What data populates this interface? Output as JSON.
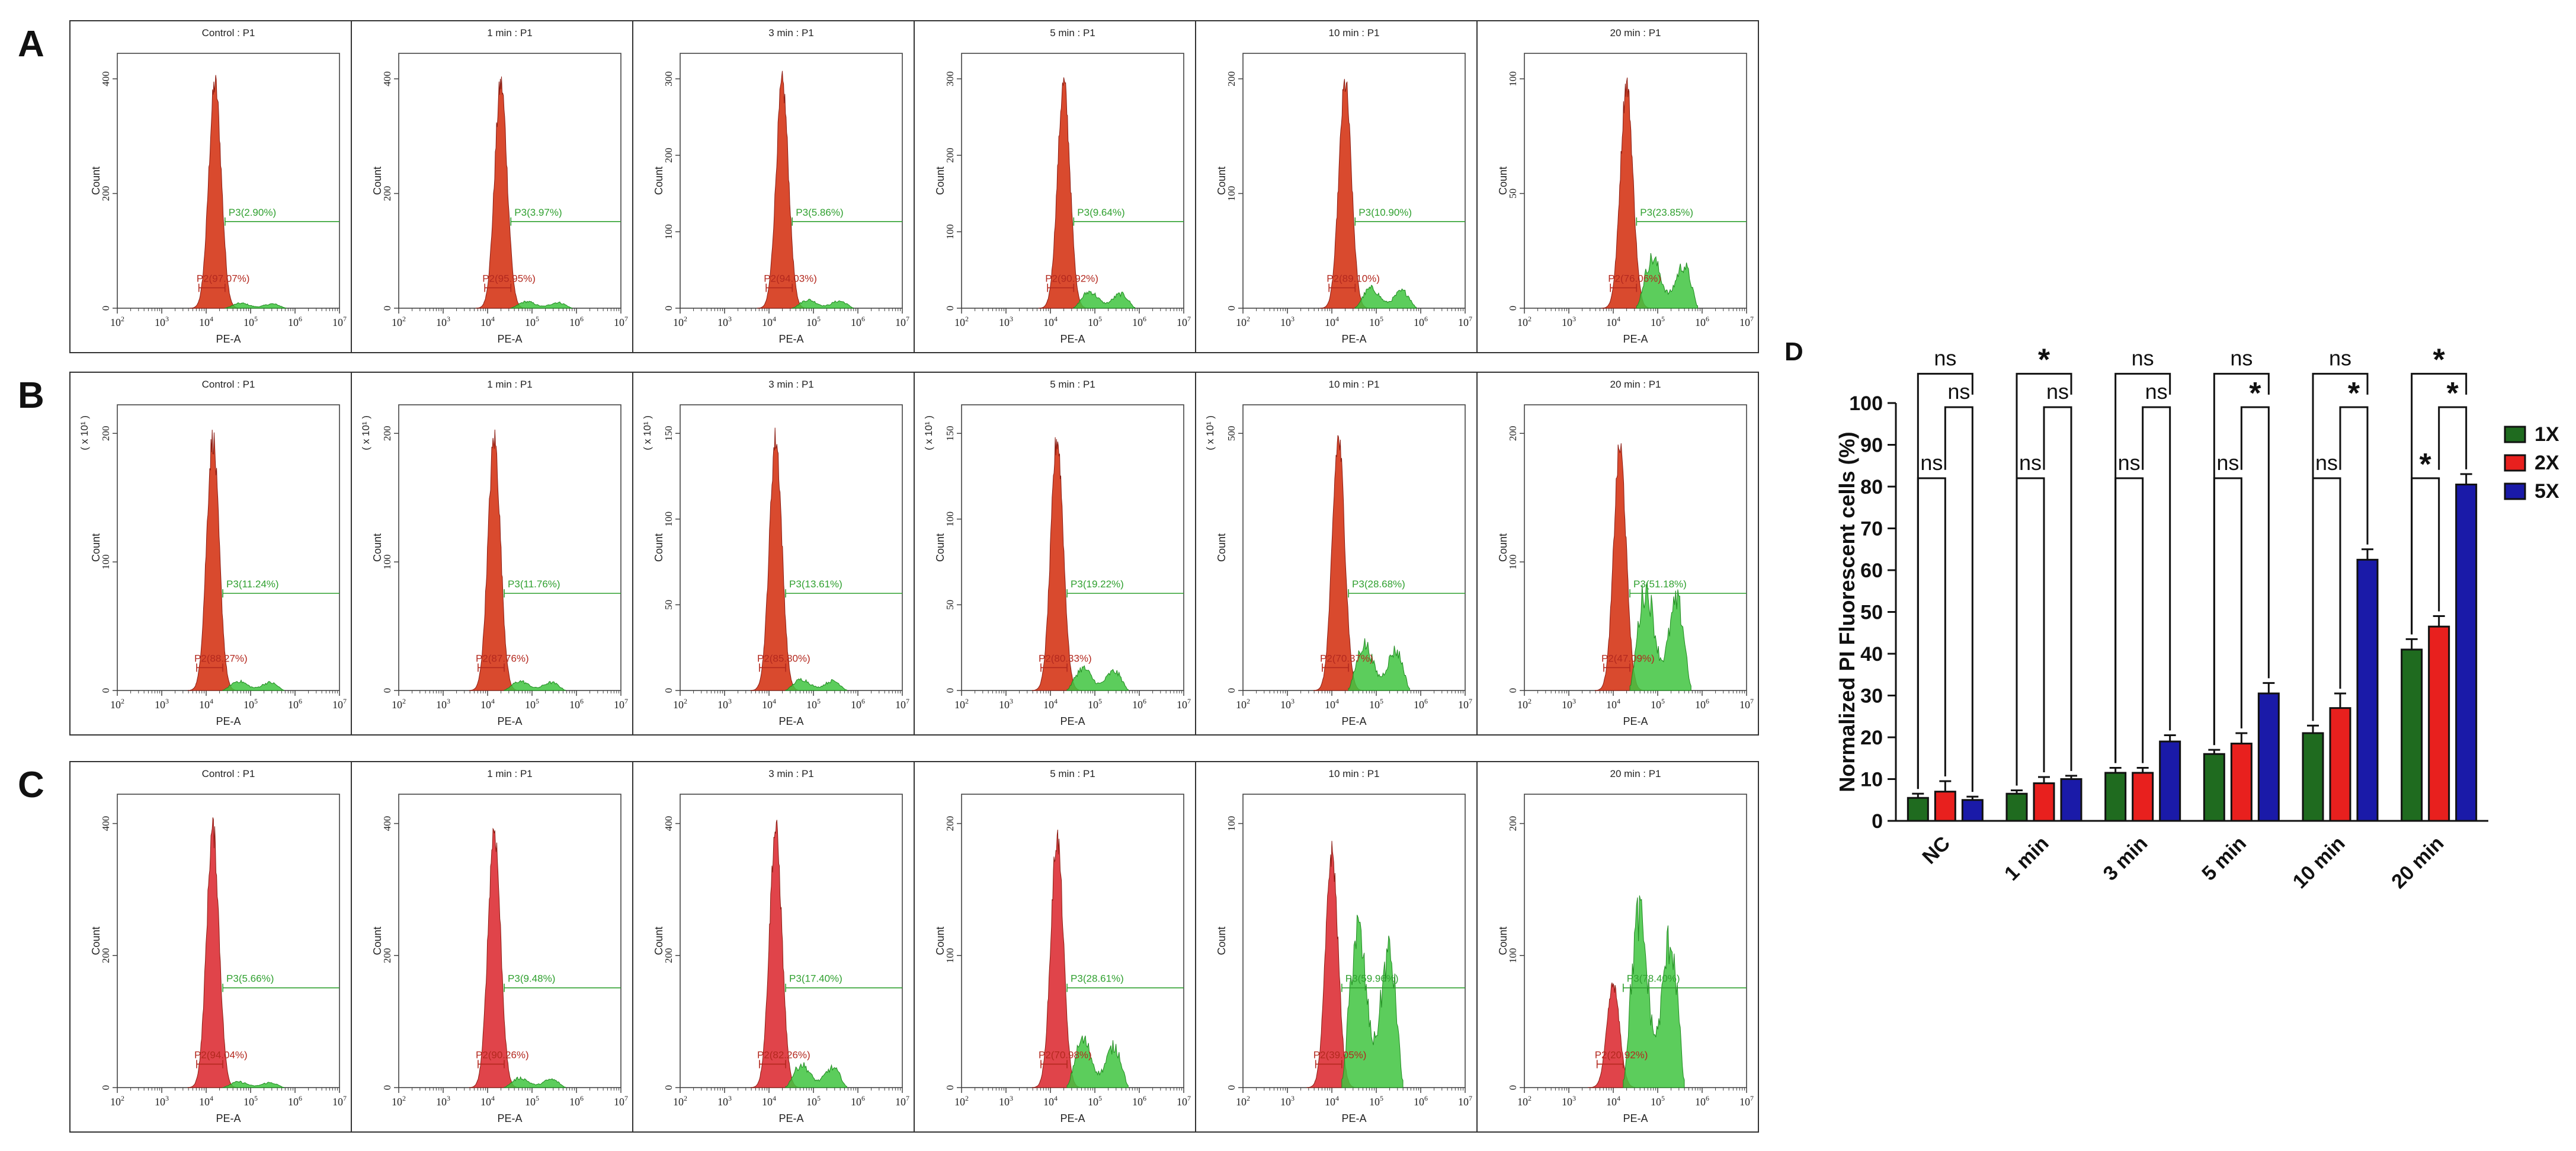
{
  "chart_data": [
    {
      "type": "histogram-grid",
      "panel_label": "A",
      "xlabel": "PE-A",
      "ylabel": "Count",
      "x_ticks": [
        "2",
        "3",
        "4",
        "5",
        "6",
        "7"
      ],
      "plots": [
        {
          "title": "Control : P1",
          "y_max": 400,
          "y_ticks": [
            "0",
            "200",
            "400"
          ],
          "y_scale_note": "",
          "p2": "P2(97.07%)",
          "p3": "P3(2.90%)",
          "peak_pos": 0.44,
          "peak_h": 0.88,
          "green_h": 0.03
        },
        {
          "title": "1 min : P1",
          "y_max": 400,
          "y_ticks": [
            "0",
            "200",
            "400"
          ],
          "y_scale_note": "",
          "p2": "P2(95.95%)",
          "p3": "P3(3.97%)",
          "peak_pos": 0.46,
          "peak_h": 0.88,
          "green_h": 0.04
        },
        {
          "title": "3 min : P1",
          "y_max": 300,
          "y_ticks": [
            "0",
            "100",
            "200",
            "300"
          ],
          "y_scale_note": "",
          "p2": "P2(94.03%)",
          "p3": "P3(5.86%)",
          "peak_pos": 0.46,
          "peak_h": 0.88,
          "green_h": 0.05
        },
        {
          "title": "5 min : P1",
          "y_max": 300,
          "y_ticks": [
            "0",
            "100",
            "200",
            "300"
          ],
          "y_scale_note": "",
          "p2": "P2(90.92%)",
          "p3": "P3(9.64%)",
          "peak_pos": 0.46,
          "peak_h": 0.88,
          "green_h": 0.1
        },
        {
          "title": "10 min : P1",
          "y_max": 200,
          "y_ticks": [
            "0",
            "100",
            "200"
          ],
          "y_scale_note": "",
          "p2": "P2(89.10%)",
          "p3": "P3(10.90%)",
          "peak_pos": 0.46,
          "peak_h": 0.88,
          "green_h": 0.12
        },
        {
          "title": "20 min : P1",
          "y_max": 100,
          "y_ticks": [
            "0",
            "50",
            "100"
          ],
          "y_scale_note": "",
          "p2": "P2(76.06%)",
          "p3": "P3(23.85%)",
          "peak_pos": 0.46,
          "peak_h": 0.88,
          "green_h": 0.3
        }
      ]
    },
    {
      "type": "histogram-grid",
      "panel_label": "B",
      "xlabel": "PE-A",
      "ylabel": "Count",
      "x_ticks": [
        "2",
        "3",
        "4",
        "5",
        "6",
        "7"
      ],
      "plots": [
        {
          "title": "Control : P1",
          "y_max": 200,
          "y_ticks": [
            "0",
            "100",
            "200"
          ],
          "y_scale_note": "( x 10¹ )",
          "p2": "P2(88.27%)",
          "p3": "P3(11.24%)",
          "peak_pos": 0.43,
          "peak_h": 0.88,
          "green_h": 0.05
        },
        {
          "title": "1 min : P1",
          "y_max": 200,
          "y_ticks": [
            "0",
            "100",
            "200"
          ],
          "y_scale_note": "( x 10¹ )",
          "p2": "P2(87.76%)",
          "p3": "P3(11.76%)",
          "peak_pos": 0.43,
          "peak_h": 0.88,
          "green_h": 0.05
        },
        {
          "title": "3 min : P1",
          "y_max": 150,
          "y_ticks": [
            "0",
            "50",
            "100",
            "150"
          ],
          "y_scale_note": "( x 10¹ )",
          "p2": "P2(85.80%)",
          "p3": "P3(13.61%)",
          "peak_pos": 0.43,
          "peak_h": 0.88,
          "green_h": 0.06
        },
        {
          "title": "5 min : P1",
          "y_max": 150,
          "y_ticks": [
            "0",
            "50",
            "100",
            "150"
          ],
          "y_scale_note": "( x 10¹ )",
          "p2": "P2(80.33%)",
          "p3": "P3(19.22%)",
          "peak_pos": 0.43,
          "peak_h": 0.88,
          "green_h": 0.12
        },
        {
          "title": "10 min : P1",
          "y_max": 500,
          "y_ticks": [
            "0",
            "500"
          ],
          "y_scale_note": "( x 10¹ )",
          "p2": "P2(70.37%)",
          "p3": "P3(28.68%)",
          "peak_pos": 0.43,
          "peak_h": 0.88,
          "green_h": 0.25
        },
        {
          "title": "20 min : P1",
          "y_max": 200,
          "y_ticks": [
            "0",
            "100",
            "200"
          ],
          "y_scale_note": "",
          "p2": "P2(47.09%)",
          "p3": "P3(51.18%)",
          "peak_pos": 0.43,
          "peak_h": 0.85,
          "green_h": 0.55
        }
      ]
    },
    {
      "type": "histogram-grid",
      "panel_label": "C",
      "xlabel": "PE-A",
      "ylabel": "Count",
      "x_ticks": [
        "2",
        "3",
        "4",
        "5",
        "6",
        "7"
      ],
      "plots": [
        {
          "title": "Control : P1",
          "y_max": 400,
          "y_ticks": [
            "0",
            "200",
            "400"
          ],
          "y_scale_note": "",
          "p2": "P2(94.04%)",
          "p3": "P3(5.66%)",
          "peak_pos": 0.43,
          "peak_h": 0.88,
          "green_h": 0.03
        },
        {
          "title": "1 min : P1",
          "y_max": 400,
          "y_ticks": [
            "0",
            "200",
            "400"
          ],
          "y_scale_note": "",
          "p2": "P2(90.26%)",
          "p3": "P3(9.48%)",
          "peak_pos": 0.43,
          "peak_h": 0.88,
          "green_h": 0.05
        },
        {
          "title": "3 min : P1",
          "y_max": 400,
          "y_ticks": [
            "0",
            "200",
            "400"
          ],
          "y_scale_note": "",
          "p2": "P2(82.26%)",
          "p3": "P3(17.40%)",
          "peak_pos": 0.43,
          "peak_h": 0.88,
          "green_h": 0.12
        },
        {
          "title": "5 min : P1",
          "y_max": 200,
          "y_ticks": [
            "0",
            "100",
            "200"
          ],
          "y_scale_note": "",
          "p2": "P2(70.98%)",
          "p3": "P3(28.61%)",
          "peak_pos": 0.43,
          "peak_h": 0.85,
          "green_h": 0.25
        },
        {
          "title": "10 min : P1",
          "y_max": 100,
          "y_ticks": [
            "0",
            "100"
          ],
          "y_scale_note": "",
          "p2": "P2(39.05%)",
          "p3": "P3(59.96%)",
          "peak_pos": 0.4,
          "peak_h": 0.8,
          "green_h": 0.82
        },
        {
          "title": "20 min : P1",
          "y_max": 200,
          "y_ticks": [
            "0",
            "100",
            "200"
          ],
          "y_scale_note": "",
          "p2": "P2(20.92%)",
          "p3": "P3(78.40%)",
          "peak_pos": 0.4,
          "peak_h": 0.35,
          "green_h": 0.9
        }
      ]
    },
    {
      "type": "bar",
      "panel_label": "D",
      "ylabel": "Normalized PI Fluorescent cells (%)",
      "ylim": [
        0,
        100
      ],
      "y_ticks": [
        0,
        10,
        20,
        30,
        40,
        50,
        60,
        70,
        80,
        90,
        100
      ],
      "categories": [
        "NC",
        "1 min",
        "3 min",
        "5 min",
        "10 min",
        "20 min"
      ],
      "series": [
        {
          "name": "1X",
          "color": "#1f6b1f",
          "values": [
            5.5,
            6.5,
            11.5,
            16,
            21,
            41
          ],
          "errors": [
            1,
            0.8,
            1.2,
            1,
            1.8,
            2.5
          ]
        },
        {
          "name": "2X",
          "color": "#e8201e",
          "values": [
            7,
            9,
            11.5,
            18.5,
            27,
            46.5
          ],
          "errors": [
            2.5,
            1.5,
            1.2,
            2.5,
            3.5,
            2.5
          ]
        },
        {
          "name": "5X",
          "color": "#1a1aa8",
          "values": [
            5,
            10,
            19,
            30.5,
            62.5,
            80.5
          ],
          "errors": [
            0.8,
            0.8,
            1.5,
            2.5,
            2.5,
            2.5
          ]
        }
      ],
      "significance": [
        {
          "category": "NC",
          "pair": "1X-5X",
          "label": "ns"
        },
        {
          "category": "NC",
          "pair": "2X-5X",
          "label": "ns"
        },
        {
          "category": "NC",
          "pair": "1X-2X",
          "label": "ns"
        },
        {
          "category": "1 min",
          "pair": "1X-5X",
          "label": "*"
        },
        {
          "category": "1 min",
          "pair": "2X-5X",
          "label": "ns"
        },
        {
          "category": "1 min",
          "pair": "1X-2X",
          "label": "ns"
        },
        {
          "category": "3 min",
          "pair": "1X-5X",
          "label": "ns"
        },
        {
          "category": "3 min",
          "pair": "2X-5X",
          "label": "ns"
        },
        {
          "category": "3 min",
          "pair": "1X-2X",
          "label": "ns"
        },
        {
          "category": "5 min",
          "pair": "1X-5X",
          "label": "ns"
        },
        {
          "category": "5 min",
          "pair": "2X-5X",
          "label": "*"
        },
        {
          "category": "5 min",
          "pair": "1X-2X",
          "label": "ns"
        },
        {
          "category": "10 min",
          "pair": "1X-5X",
          "label": "ns"
        },
        {
          "category": "10 min",
          "pair": "2X-5X",
          "label": "*"
        },
        {
          "category": "10 min",
          "pair": "1X-2X",
          "label": "ns"
        },
        {
          "category": "20 min",
          "pair": "1X-5X",
          "label": "*"
        },
        {
          "category": "20 min",
          "pair": "2X-5X",
          "label": "*"
        },
        {
          "category": "20 min",
          "pair": "1X-2X",
          "label": "*"
        }
      ],
      "legend": {
        "placement": "right",
        "entries": [
          "1X",
          "2X",
          "5X"
        ]
      }
    }
  ]
}
